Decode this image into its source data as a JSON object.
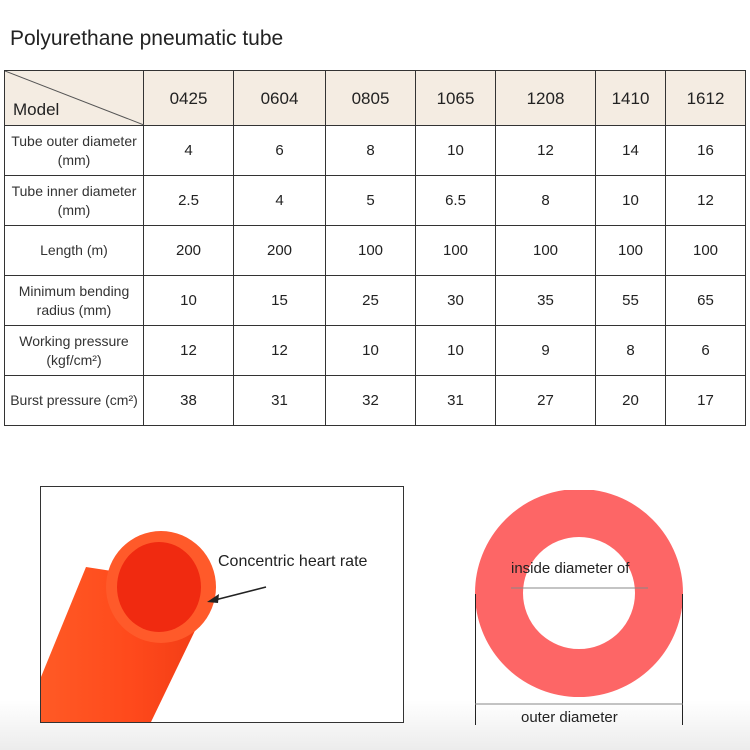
{
  "title": "Polyurethane pneumatic tube",
  "table": {
    "corner_label": "Model",
    "models": [
      "0425",
      "0604",
      "0805",
      "1065",
      "1208",
      "1410",
      "1612"
    ],
    "rows": [
      {
        "label_line1": "Tube outer diameter",
        "label_line2": "(mm)",
        "values": [
          "4",
          "6",
          "8",
          "10",
          "12",
          "14",
          "16"
        ]
      },
      {
        "label_line1": "Tube inner diameter",
        "label_line2": "(mm)",
        "values": [
          "2.5",
          "4",
          "5",
          "6.5",
          "8",
          "10",
          "12"
        ]
      },
      {
        "label_line1": "Length (m)",
        "label_line2": "",
        "values": [
          "200",
          "200",
          "100",
          "100",
          "100",
          "100",
          "100"
        ]
      },
      {
        "label_line1": "Minimum bending",
        "label_line2": "radius (mm)",
        "values": [
          "10",
          "15",
          "25",
          "30",
          "35",
          "55",
          "65"
        ]
      },
      {
        "label_line1": "Working pressure",
        "label_line2": "(kgf/cm²)",
        "values": [
          "12",
          "12",
          "10",
          "10",
          "9",
          "8",
          "6"
        ]
      },
      {
        "label_line1": "Burst pressure (cm²)",
        "label_line2": "",
        "values": [
          "38",
          "31",
          "32",
          "31",
          "27",
          "20",
          "17"
        ]
      }
    ]
  },
  "photo": {
    "callout": "Concentric heart rate"
  },
  "diagram": {
    "inner_label": "inside diameter of",
    "outer_label": "outer diameter",
    "ring_color": "#fd6666"
  },
  "colors": {
    "header_bg": "#f4ece2",
    "tube": "#ff4a1c"
  }
}
